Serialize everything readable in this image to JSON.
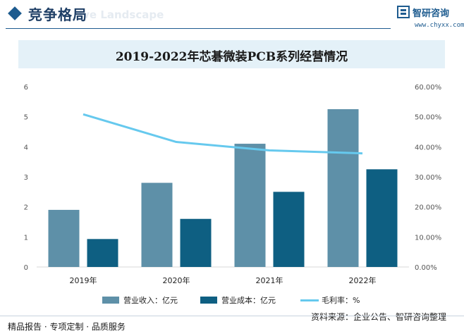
{
  "header": {
    "title": "竞争格局",
    "subtitle": "ive Landscape",
    "brand_name": "智研咨询",
    "brand_url": "www.chyxx.com"
  },
  "colors": {
    "revenue": "#5e90a8",
    "cost": "#0e5f82",
    "margin": "#66c9ee",
    "accent": "#1d5b8f"
  },
  "chart_data": {
    "type": "bar",
    "title": "2019-2022年芯碁微装PCB系列经营情况",
    "categories": [
      "2019年",
      "2020年",
      "2021年",
      "2022年"
    ],
    "series": [
      {
        "name": "营业收入：亿元",
        "type": "bar",
        "axis": "left",
        "values": [
          1.9,
          2.8,
          4.1,
          5.25
        ]
      },
      {
        "name": "营业成本：亿元",
        "type": "bar",
        "axis": "left",
        "values": [
          0.93,
          1.6,
          2.5,
          3.25
        ]
      },
      {
        "name": "毛利率：%",
        "type": "line",
        "axis": "right",
        "values": [
          50.8,
          41.6,
          38.8,
          37.8
        ]
      }
    ],
    "y_left": {
      "min": 0,
      "max": 6,
      "ticks": [
        "0",
        "1",
        "2",
        "3",
        "4",
        "5",
        "6"
      ]
    },
    "y_right": {
      "min": 0,
      "max": 60,
      "ticks": [
        "0.00%",
        "10.00%",
        "20.00%",
        "30.00%",
        "40.00%",
        "50.00%",
        "60.00%"
      ]
    },
    "grid": false,
    "legend": "bottom"
  },
  "source": "资料来源：企业公告、智研咨询整理",
  "footer": "精品报告 · 专项定制 · 品质服务"
}
